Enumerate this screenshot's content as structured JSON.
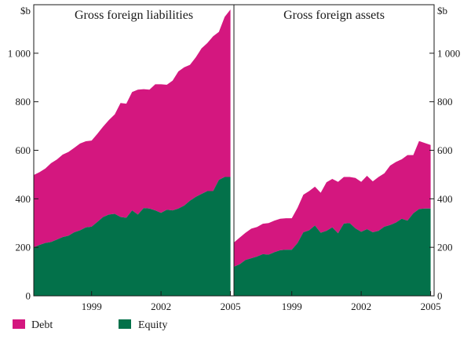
{
  "chart_data": {
    "type": "area",
    "stacked": true,
    "unit_label": "$b",
    "ylim": [
      0,
      1200
    ],
    "y_ticks": [
      0,
      200,
      400,
      600,
      800,
      1000
    ],
    "y_tick_labels": [
      "0",
      "200",
      "400",
      "600",
      "800",
      "1 000"
    ],
    "x_range": [
      1996.5,
      2005.15
    ],
    "x_ticks": [
      1999,
      2002,
      2005
    ],
    "x_tick_labels": [
      "1999",
      "2002",
      "2005"
    ],
    "colors": {
      "Debt": "#d4177f",
      "Equity": "#03714a"
    },
    "legend": [
      {
        "name": "Debt",
        "color": "#d4177f"
      },
      {
        "name": "Equity",
        "color": "#03714a"
      }
    ],
    "panels": [
      {
        "title": "Gross foreign liabilities",
        "x": [
          1996.5,
          1996.75,
          1997,
          1997.25,
          1997.5,
          1997.75,
          1998,
          1998.25,
          1998.5,
          1998.75,
          1999,
          1999.25,
          1999.5,
          1999.75,
          2000,
          2000.25,
          2000.5,
          2000.75,
          2001,
          2001.25,
          2001.5,
          2001.75,
          2002,
          2002.25,
          2002.5,
          2002.75,
          2003,
          2003.25,
          2003.5,
          2003.75,
          2004,
          2004.25,
          2004.5,
          2004.75,
          2005
        ],
        "series": [
          {
            "name": "Equity",
            "values": [
              200,
              210,
              218,
              222,
              232,
              242,
              248,
              262,
              270,
              282,
              285,
              305,
              325,
              335,
              338,
              325,
              322,
              352,
              335,
              362,
              360,
              352,
              342,
              355,
              352,
              360,
              372,
              392,
              408,
              420,
              432,
              432,
              478,
              490,
              490
            ]
          },
          {
            "name": "Debt",
            "values": [
              298,
              300,
              307,
              325,
              330,
              340,
              345,
              348,
              358,
              355,
              355,
              363,
              373,
              390,
              410,
              470,
              470,
              488,
              515,
              490,
              490,
              520,
              530,
              515,
              535,
              565,
              570,
              560,
              575,
              600,
              610,
              638,
              610,
              660,
              690
            ]
          }
        ]
      },
      {
        "title": "Gross foreign assets",
        "x": [
          1996.5,
          1996.75,
          1997,
          1997.25,
          1997.5,
          1997.75,
          1998,
          1998.25,
          1998.5,
          1998.75,
          1999,
          1999.25,
          1999.5,
          1999.75,
          2000,
          2000.25,
          2000.5,
          2000.75,
          2001,
          2001.25,
          2001.5,
          2001.75,
          2002,
          2002.25,
          2002.5,
          2002.75,
          2003,
          2003.25,
          2003.5,
          2003.75,
          2004,
          2004.25,
          2004.5,
          2004.75,
          2005
        ],
        "series": [
          {
            "name": "Equity",
            "values": [
              120,
              130,
              148,
              155,
              162,
              172,
              170,
              180,
              188,
              190,
              190,
              218,
              262,
              270,
              290,
              260,
              268,
              282,
              258,
              298,
              300,
              278,
              264,
              275,
              262,
              268,
              285,
              292,
              302,
              318,
              310,
              340,
              358,
              360,
              360
            ]
          },
          {
            "name": "Debt",
            "values": [
              100,
              110,
              112,
              122,
              122,
              125,
              130,
              130,
              130,
              130,
              130,
              145,
              155,
              162,
              160,
              165,
              200,
              200,
              212,
              192,
              190,
              208,
              206,
              220,
              210,
              222,
              220,
              245,
              250,
              245,
              270,
              240,
              280,
              270,
              262
            ]
          }
        ]
      }
    ]
  }
}
